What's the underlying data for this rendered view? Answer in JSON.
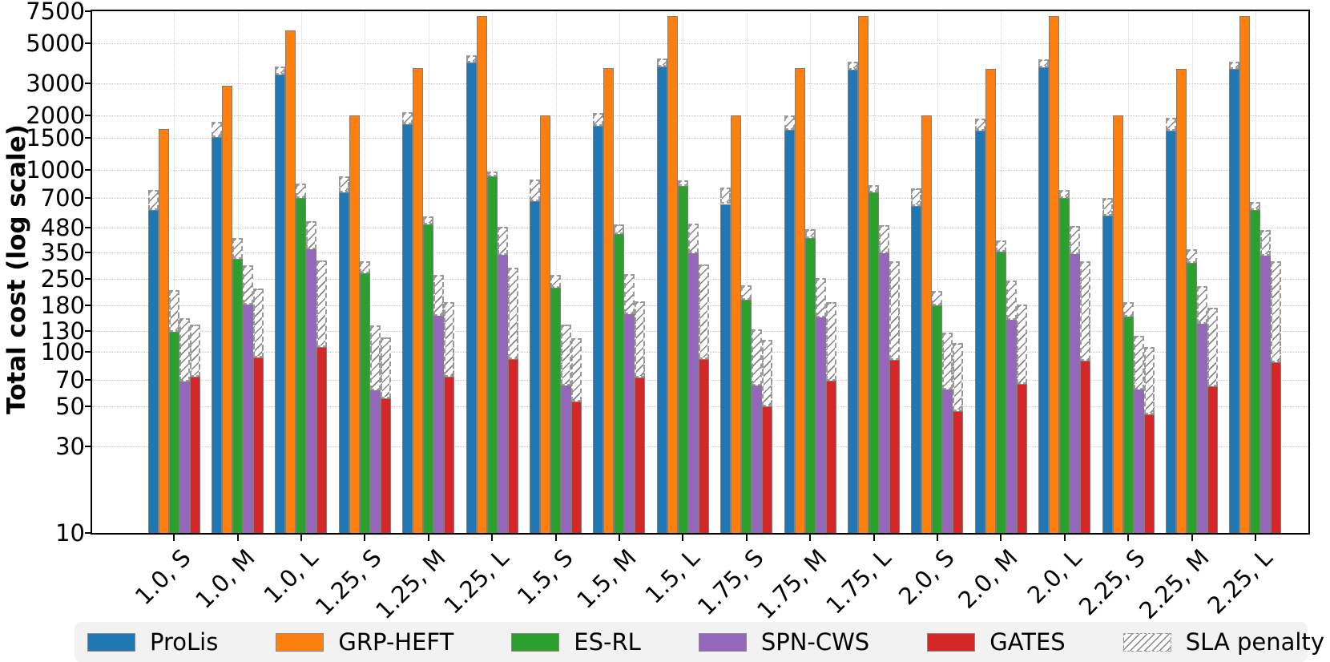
{
  "chart_data": {
    "type": "bar",
    "title": "",
    "ylabel": "Total cost (log scale)",
    "yscale": "log",
    "ylim": [
      10,
      7500
    ],
    "yticks": [
      10,
      30,
      50,
      70,
      100,
      130,
      180,
      250,
      350,
      480,
      700,
      1000,
      1500,
      2000,
      3000,
      5000,
      7500
    ],
    "grid": true,
    "legend_position": "bottom",
    "categories": [
      "1.0, S",
      "1.0, M",
      "1.0, L",
      "1.25, S",
      "1.25, M",
      "1.25, L",
      "1.5, S",
      "1.5, M",
      "1.5, L",
      "1.75, S",
      "1.75, M",
      "1.75, L",
      "2.0, S",
      "2.0, M",
      "2.0, L",
      "2.25, S",
      "2.25, M",
      "2.25, L"
    ],
    "sla_penalty_label": "SLA penalty",
    "series": [
      {
        "name": "ProLis",
        "color": "#1f77b4",
        "values": [
          600,
          1520,
          3360,
          750,
          1780,
          3900,
          675,
          1760,
          3720,
          650,
          1670,
          3570,
          635,
          1640,
          3680,
          560,
          1640,
          3620
        ],
        "totals_with_sla_penalty": [
          775,
          1840,
          3730,
          920,
          2090,
          4300,
          885,
          2060,
          4100,
          800,
          2000,
          3970,
          790,
          1920,
          4070,
          705,
          1940,
          3970
        ]
      },
      {
        "name": "GRP-HEFT",
        "color": "#ff7f0e",
        "values": [
          1690,
          2900,
          5900,
          2000,
          3650,
          7050,
          2000,
          3650,
          7050,
          2000,
          3650,
          7050,
          2000,
          3620,
          7050,
          2000,
          3620,
          7050
        ],
        "totals_with_sla_penalty": [
          1690,
          2900,
          5900,
          2000,
          3650,
          7050,
          2000,
          3650,
          7050,
          2000,
          3650,
          7050,
          2000,
          3620,
          7050,
          2000,
          3620,
          7050
        ]
      },
      {
        "name": "ES-RL",
        "color": "#2ca02c",
        "values": [
          128,
          325,
          705,
          270,
          500,
          920,
          225,
          444,
          815,
          193,
          422,
          750,
          180,
          354,
          705,
          156,
          307,
          604
        ],
        "totals_with_sla_penalty": [
          218,
          420,
          840,
          313,
          557,
          980,
          263,
          503,
          875,
          232,
          472,
          823,
          216,
          409,
          773,
          187,
          365,
          670
        ]
      },
      {
        "name": "SPN-CWS",
        "color": "#9467bd",
        "values": [
          68,
          181,
          365,
          61,
          157,
          340,
          65,
          161,
          347,
          65,
          154,
          347,
          62,
          149,
          344,
          62,
          142,
          336
        ],
        "totals_with_sla_penalty": [
          153,
          300,
          524,
          139,
          263,
          487,
          140,
          266,
          507,
          132,
          255,
          497,
          127,
          247,
          492,
          122,
          230,
          468
        ]
      },
      {
        "name": "GATES",
        "color": "#d62728",
        "values": [
          73,
          93,
          106,
          55,
          73,
          91,
          53,
          72,
          91,
          50,
          69,
          90,
          47,
          66,
          89,
          45,
          64,
          87
        ],
        "totals_with_sla_penalty": [
          140,
          222,
          316,
          119,
          187,
          291,
          118,
          189,
          303,
          116,
          187,
          313,
          111,
          182,
          313,
          106,
          174,
          313
        ]
      }
    ]
  }
}
